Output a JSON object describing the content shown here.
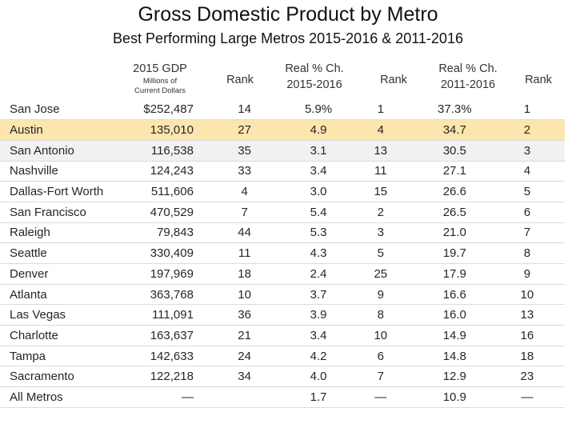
{
  "title": "Gross Domestic Product by Metro",
  "subtitle": "Best Performing Large Metros 2015-2016 & 2011-2016",
  "columns": {
    "gdp": "2015 GDP",
    "gdp_unit_1": "Millions of",
    "gdp_unit_2": "Current Dollars",
    "rank1": "Rank",
    "pct1_a": "Real % Ch.",
    "pct1_b": "2015-2016",
    "rank2": "Rank",
    "pct2_a": "Real % Ch.",
    "pct2_b": "2011-2016",
    "rank3": "Rank"
  },
  "highlight_color": "#fde6ae",
  "highlighted_row": "Austin",
  "rows": [
    {
      "metro": "San Jose",
      "gdp": "$252,487",
      "gdp_rank": "14",
      "pct_15_16": "5.9%",
      "rank_15_16": "1",
      "pct_11_16": "37.3%",
      "rank_11_16": "1"
    },
    {
      "metro": "Austin",
      "gdp": "135,010",
      "gdp_rank": "27",
      "pct_15_16": "4.9",
      "rank_15_16": "4",
      "pct_11_16": "34.7",
      "rank_11_16": "2"
    },
    {
      "metro": "San Antonio",
      "gdp": "116,538",
      "gdp_rank": "35",
      "pct_15_16": "3.1",
      "rank_15_16": "13",
      "pct_11_16": "30.5",
      "rank_11_16": "3"
    },
    {
      "metro": "Nashville",
      "gdp": "124,243",
      "gdp_rank": "33",
      "pct_15_16": "3.4",
      "rank_15_16": "11",
      "pct_11_16": "27.1",
      "rank_11_16": "4"
    },
    {
      "metro": "Dallas-Fort Worth",
      "gdp": "511,606",
      "gdp_rank": "4",
      "pct_15_16": "3.0",
      "rank_15_16": "15",
      "pct_11_16": "26.6",
      "rank_11_16": "5"
    },
    {
      "metro": "San Francisco",
      "gdp": "470,529",
      "gdp_rank": "7",
      "pct_15_16": "5.4",
      "rank_15_16": "2",
      "pct_11_16": "26.5",
      "rank_11_16": "6"
    },
    {
      "metro": "Raleigh",
      "gdp": "79,843",
      "gdp_rank": "44",
      "pct_15_16": "5.3",
      "rank_15_16": "3",
      "pct_11_16": "21.0",
      "rank_11_16": "7"
    },
    {
      "metro": "Seattle",
      "gdp": "330,409",
      "gdp_rank": "11",
      "pct_15_16": "4.3",
      "rank_15_16": "5",
      "pct_11_16": "19.7",
      "rank_11_16": "8"
    },
    {
      "metro": "Denver",
      "gdp": "197,969",
      "gdp_rank": "18",
      "pct_15_16": "2.4",
      "rank_15_16": "25",
      "pct_11_16": "17.9",
      "rank_11_16": "9"
    },
    {
      "metro": "Atlanta",
      "gdp": "363,768",
      "gdp_rank": "10",
      "pct_15_16": "3.7",
      "rank_15_16": "9",
      "pct_11_16": "16.6",
      "rank_11_16": "10"
    },
    {
      "metro": "Las Vegas",
      "gdp": "111,091",
      "gdp_rank": "36",
      "pct_15_16": "3.9",
      "rank_15_16": "8",
      "pct_11_16": "16.0",
      "rank_11_16": "13"
    },
    {
      "metro": "Charlotte",
      "gdp": "163,637",
      "gdp_rank": "21",
      "pct_15_16": "3.4",
      "rank_15_16": "10",
      "pct_11_16": "14.9",
      "rank_11_16": "16"
    },
    {
      "metro": "Tampa",
      "gdp": "142,633",
      "gdp_rank": "24",
      "pct_15_16": "4.2",
      "rank_15_16": "6",
      "pct_11_16": "14.8",
      "rank_11_16": "18"
    },
    {
      "metro": "Sacramento",
      "gdp": "122,218",
      "gdp_rank": "34",
      "pct_15_16": "4.0",
      "rank_15_16": "7",
      "pct_11_16": "12.9",
      "rank_11_16": "23"
    },
    {
      "metro": "All Metros",
      "gdp": "—",
      "gdp_rank": "",
      "pct_15_16": "1.7",
      "rank_15_16": "—",
      "pct_11_16": "10.9",
      "rank_11_16": "—"
    }
  ]
}
